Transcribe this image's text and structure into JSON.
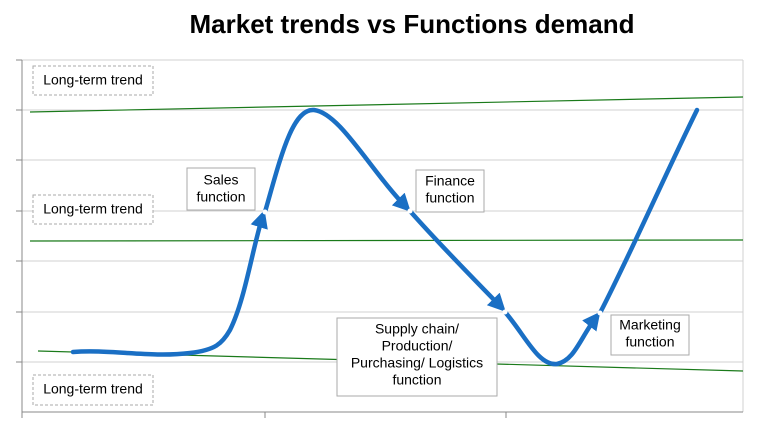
{
  "title": "Market trends vs Functions demand",
  "trend_labels": [
    "Long-term trend",
    "Long-term trend",
    "Long-term trend"
  ],
  "functions": [
    {
      "lines": [
        "Sales",
        "function"
      ]
    },
    {
      "lines": [
        "Finance",
        "function"
      ]
    },
    {
      "lines": [
        "Supply chain/",
        "Production/",
        "Purchasing/ Logistics",
        "function"
      ]
    },
    {
      "lines": [
        "Marketing",
        "function"
      ]
    }
  ]
}
